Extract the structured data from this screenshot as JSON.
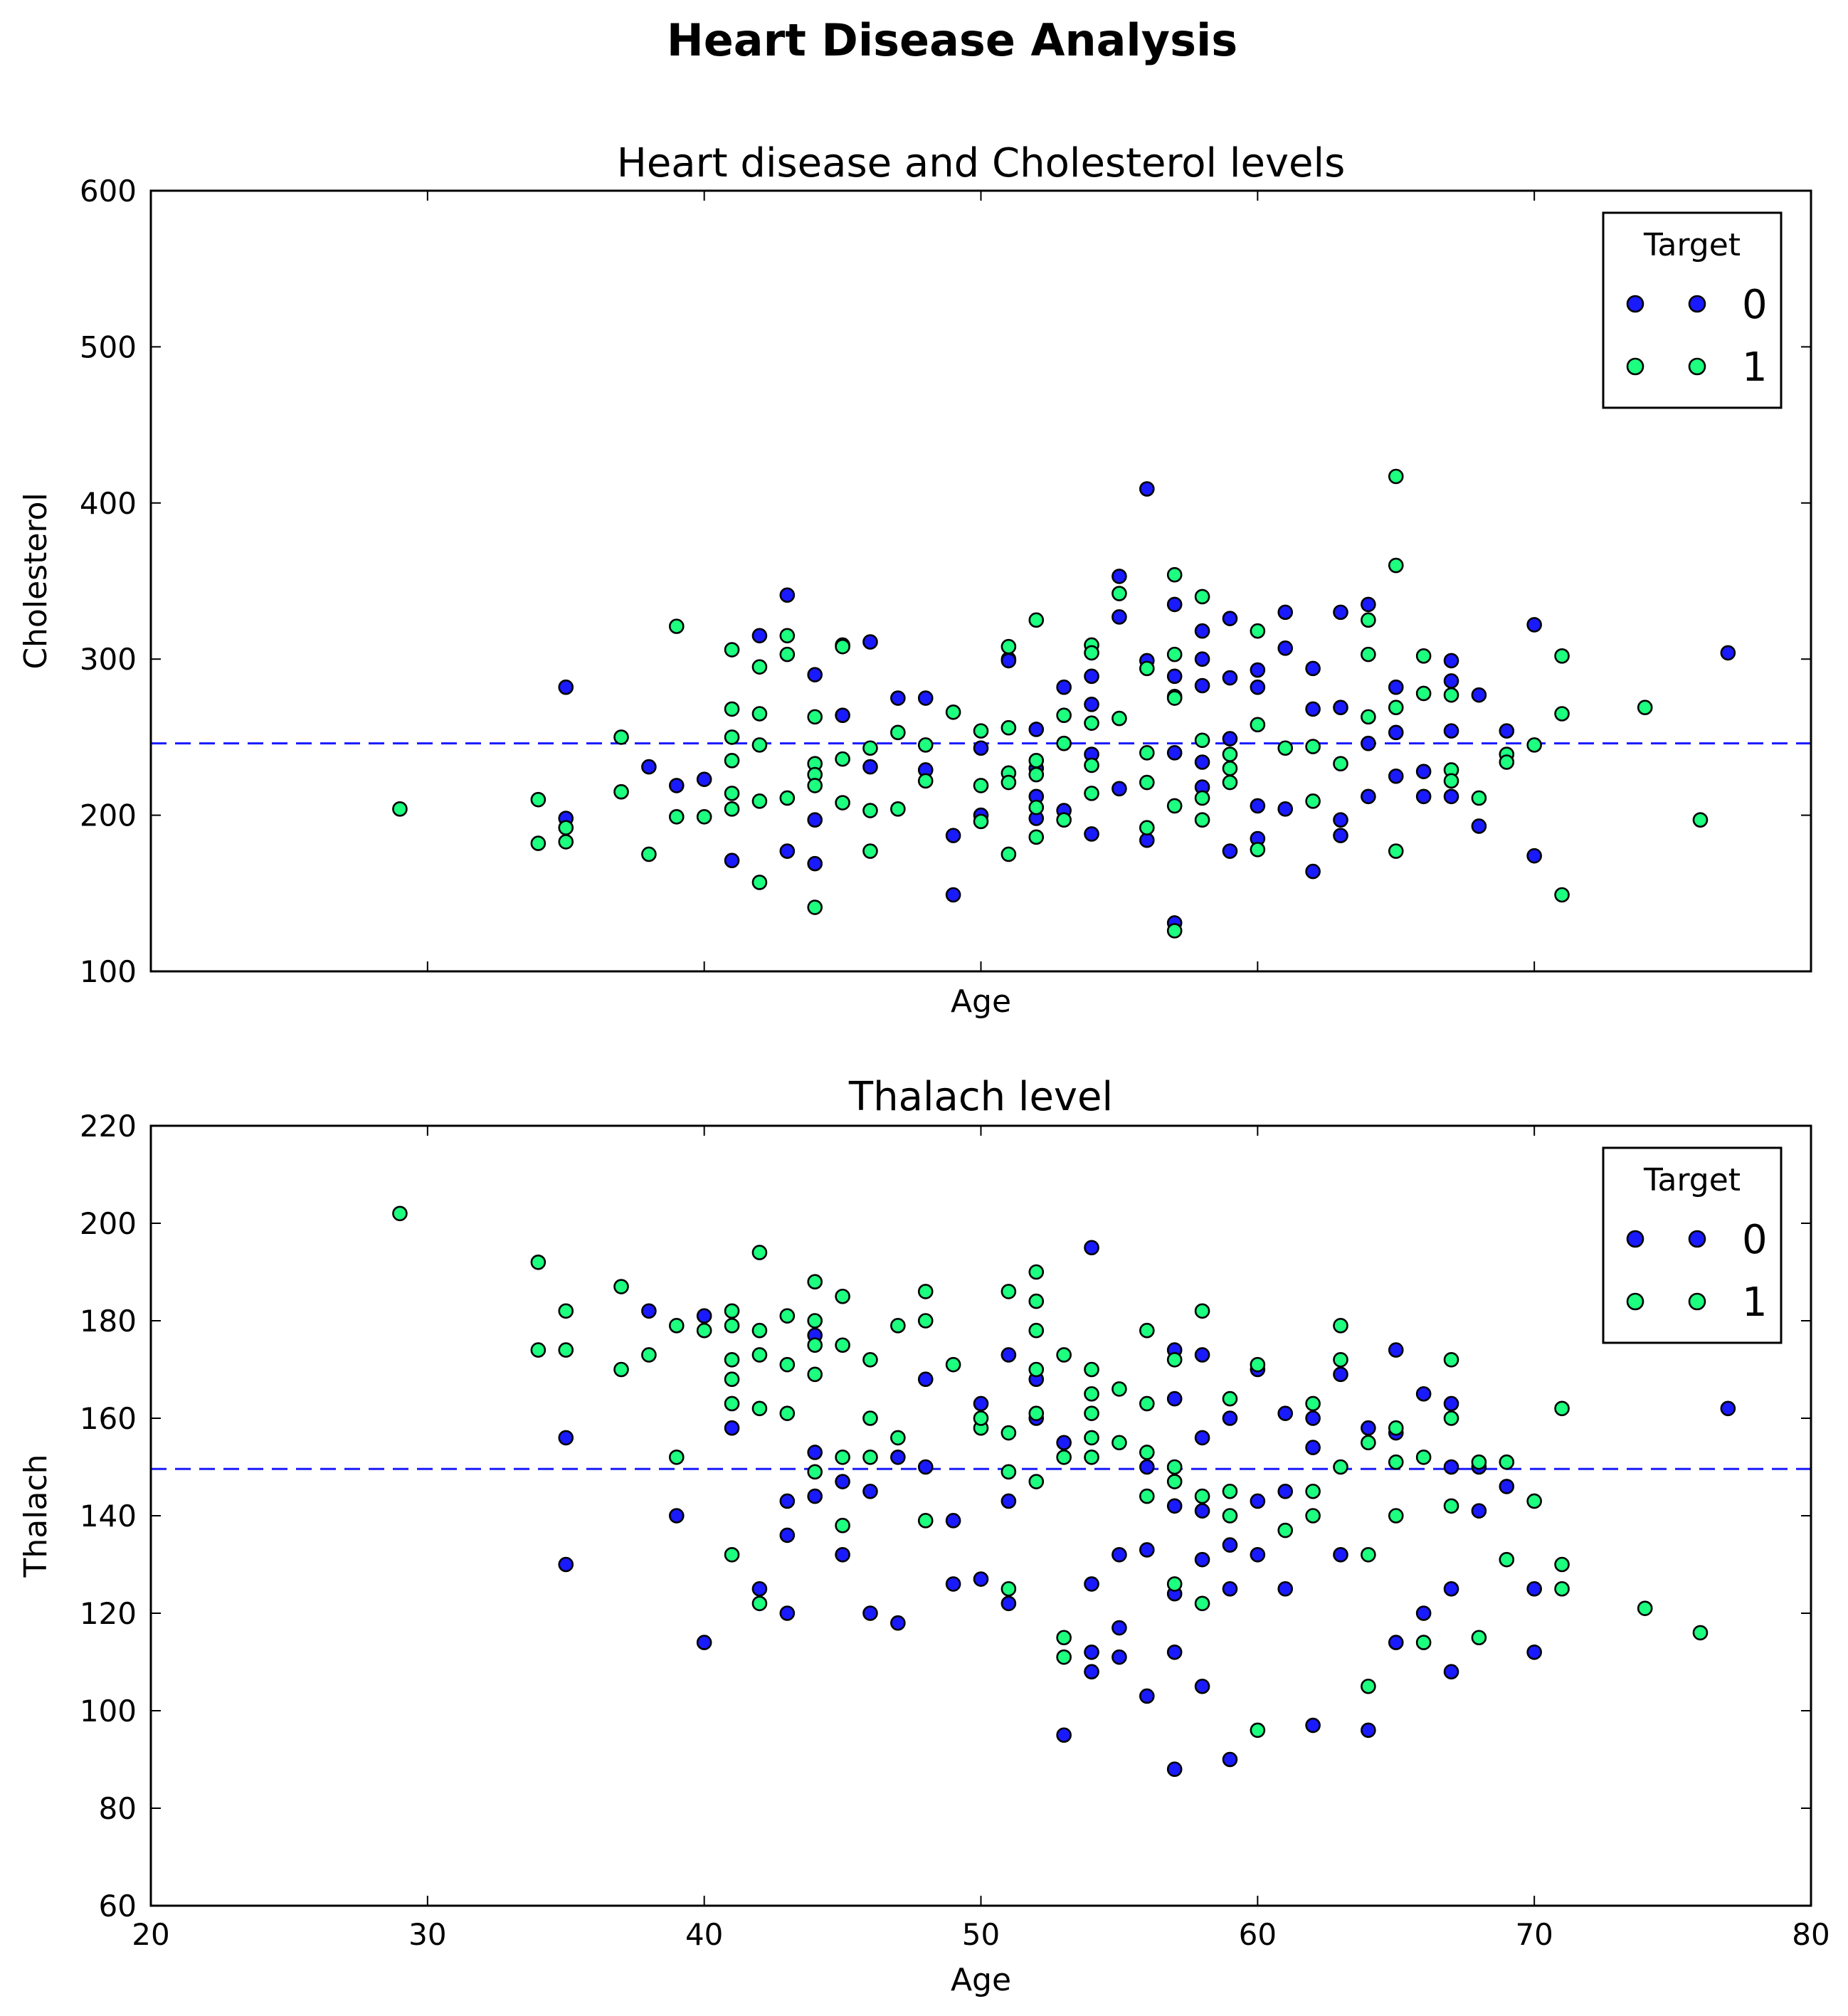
{
  "figure": {
    "title": "Heart Disease Analysis"
  },
  "colors": {
    "target_0": "#1a1aff",
    "target_1": "#1cff7f",
    "mean_line": "#1a1aff",
    "marker_edge": "#000000"
  },
  "chart_data": [
    {
      "type": "scatter",
      "title": "Heart disease and Cholesterol levels",
      "xlabel": "Age",
      "ylabel": "Cholesterol",
      "xlim": [
        20,
        80
      ],
      "ylim": [
        100,
        600
      ],
      "xticks": [
        30,
        40,
        50,
        60,
        70
      ],
      "yticks": [
        100,
        200,
        300,
        400,
        500,
        600
      ],
      "show_xticklabels": false,
      "grid": false,
      "legend": {
        "title": "Target",
        "placement": "top-right",
        "entries": [
          "0",
          "1"
        ]
      },
      "mean_line": 246,
      "series": [
        {
          "name": "0",
          "color_key": "target_0",
          "x": [
            35,
            35,
            38,
            39,
            40,
            41,
            42,
            43,
            43,
            44,
            44,
            44,
            45,
            45,
            46,
            46,
            47,
            48,
            48,
            49,
            49,
            50,
            50,
            51,
            51,
            52,
            52,
            52,
            52,
            53,
            53,
            54,
            54,
            54,
            54,
            55,
            55,
            55,
            56,
            56,
            56,
            57,
            57,
            57,
            57,
            57,
            58,
            58,
            58,
            58,
            58,
            59,
            59,
            59,
            59,
            60,
            60,
            60,
            60,
            61,
            61,
            61,
            62,
            62,
            62,
            63,
            63,
            63,
            63,
            64,
            64,
            64,
            65,
            65,
            65,
            66,
            66,
            67,
            67,
            67,
            67,
            68,
            68,
            69,
            70,
            70,
            77
          ],
          "y": [
            282,
            198,
            231,
            219,
            223,
            171,
            315,
            341,
            177,
            290,
            197,
            169,
            309,
            264,
            311,
            231,
            275,
            275,
            229,
            187,
            149,
            200,
            243,
            300,
            299,
            255,
            230,
            212,
            198,
            282,
            203,
            289,
            271,
            239,
            188,
            353,
            327,
            217,
            409,
            299,
            184,
            335,
            289,
            276,
            240,
            131,
            318,
            300,
            283,
            234,
            218,
            326,
            288,
            177,
            249,
            293,
            282,
            206,
            185,
            330,
            307,
            204,
            294,
            268,
            164,
            330,
            269,
            197,
            187,
            335,
            246,
            212,
            282,
            225,
            253,
            228,
            212,
            299,
            286,
            254,
            212,
            277,
            193,
            254,
            322,
            174,
            304
          ]
        },
        {
          "name": "1",
          "color_key": "target_1",
          "x": [
            29,
            34,
            34,
            35,
            35,
            37,
            37,
            38,
            39,
            39,
            40,
            41,
            41,
            41,
            41,
            41,
            41,
            42,
            42,
            42,
            42,
            42,
            43,
            43,
            43,
            44,
            44,
            44,
            44,
            44,
            45,
            45,
            45,
            46,
            46,
            46,
            47,
            47,
            48,
            48,
            49,
            50,
            50,
            50,
            51,
            51,
            51,
            51,
            51,
            52,
            52,
            52,
            52,
            52,
            53,
            53,
            53,
            54,
            54,
            54,
            54,
            54,
            55,
            55,
            56,
            56,
            56,
            56,
            57,
            57,
            57,
            57,
            57,
            58,
            58,
            58,
            58,
            59,
            59,
            59,
            60,
            60,
            60,
            61,
            62,
            62,
            63,
            64,
            64,
            64,
            65,
            65,
            65,
            65,
            66,
            66,
            67,
            67,
            67,
            68,
            69,
            69,
            70,
            71,
            71,
            71,
            74,
            76
          ],
          "y": [
            204,
            210,
            182,
            192,
            183,
            250,
            215,
            175,
            321,
            199,
            199,
            306,
            268,
            250,
            235,
            214,
            204,
            157,
            295,
            265,
            245,
            209,
            315,
            303,
            211,
            263,
            233,
            226,
            219,
            141,
            308,
            236,
            208,
            243,
            203,
            177,
            253,
            204,
            245,
            222,
            266,
            254,
            219,
            196,
            308,
            256,
            227,
            221,
            175,
            325,
            235,
            226,
            205,
            186,
            264,
            246,
            197,
            309,
            304,
            259,
            232,
            214,
            342,
            262,
            294,
            240,
            192,
            221,
            354,
            303,
            275,
            206,
            126,
            340,
            248,
            211,
            197,
            239,
            230,
            221,
            318,
            258,
            178,
            243,
            209,
            244,
            233,
            325,
            263,
            303,
            417,
            360,
            269,
            177,
            302,
            278,
            277,
            229,
            222,
            211,
            239,
            234,
            245,
            302,
            265,
            149,
            269,
            197
          ]
        }
      ]
    },
    {
      "type": "scatter",
      "title": "Thalach level",
      "xlabel": "Age",
      "ylabel": "Thalach",
      "xlim": [
        20,
        80
      ],
      "ylim": [
        60,
        220
      ],
      "xticks": [
        20,
        30,
        40,
        50,
        60,
        70,
        80
      ],
      "yticks": [
        60,
        80,
        100,
        120,
        140,
        160,
        180,
        200,
        220
      ],
      "show_xticklabels": true,
      "grid": false,
      "legend": {
        "title": "Target",
        "placement": "top-right",
        "entries": [
          "0",
          "1"
        ]
      },
      "mean_line": 149.6,
      "series": [
        {
          "name": "0",
          "color_key": "target_0",
          "x": [
            35,
            35,
            38,
            39,
            40,
            40,
            41,
            42,
            43,
            43,
            43,
            44,
            44,
            44,
            45,
            45,
            46,
            46,
            47,
            47,
            48,
            48,
            49,
            49,
            50,
            50,
            51,
            51,
            51,
            52,
            52,
            53,
            53,
            54,
            54,
            54,
            54,
            55,
            55,
            55,
            56,
            56,
            56,
            57,
            57,
            57,
            57,
            57,
            57,
            58,
            58,
            58,
            58,
            58,
            59,
            59,
            59,
            59,
            60,
            60,
            60,
            61,
            61,
            61,
            62,
            62,
            62,
            63,
            63,
            64,
            64,
            65,
            65,
            65,
            66,
            66,
            67,
            67,
            67,
            67,
            68,
            68,
            69,
            70,
            70,
            77
          ],
          "y": [
            156,
            130,
            182,
            140,
            181,
            114,
            158,
            125,
            143,
            136,
            120,
            177,
            153,
            144,
            147,
            132,
            145,
            120,
            152,
            118,
            168,
            150,
            139,
            126,
            163,
            127,
            173,
            143,
            122,
            168,
            160,
            155,
            95,
            195,
            126,
            112,
            108,
            132,
            117,
            111,
            150,
            133,
            103,
            174,
            164,
            142,
            124,
            112,
            88,
            173,
            156,
            141,
            131,
            105,
            134,
            125,
            90,
            160,
            170,
            143,
            132,
            161,
            145,
            125,
            160,
            154,
            97,
            169,
            132,
            158,
            96,
            174,
            157,
            114,
            165,
            120,
            163,
            150,
            125,
            108,
            150,
            141,
            146,
            125,
            112,
            162
          ]
        },
        {
          "name": "1",
          "color_key": "target_1",
          "x": [
            29,
            34,
            34,
            35,
            35,
            37,
            37,
            38,
            39,
            39,
            40,
            41,
            41,
            41,
            41,
            41,
            41,
            42,
            42,
            42,
            42,
            42,
            43,
            43,
            43,
            44,
            44,
            44,
            44,
            44,
            45,
            45,
            45,
            45,
            46,
            46,
            46,
            47,
            47,
            48,
            48,
            48,
            49,
            50,
            50,
            51,
            51,
            51,
            51,
            52,
            52,
            52,
            52,
            52,
            52,
            53,
            53,
            53,
            53,
            54,
            54,
            54,
            54,
            54,
            55,
            55,
            56,
            56,
            56,
            56,
            57,
            57,
            57,
            57,
            58,
            58,
            58,
            59,
            59,
            59,
            60,
            60,
            61,
            62,
            62,
            62,
            63,
            63,
            63,
            64,
            64,
            64,
            65,
            65,
            65,
            66,
            66,
            67,
            67,
            67,
            68,
            68,
            69,
            69,
            70,
            71,
            71,
            71,
            74,
            76
          ],
          "y": [
            202,
            192,
            174,
            182,
            174,
            187,
            170,
            173,
            179,
            152,
            178,
            182,
            179,
            172,
            168,
            163,
            132,
            194,
            178,
            173,
            162,
            122,
            181,
            171,
            161,
            188,
            180,
            175,
            169,
            149,
            185,
            175,
            152,
            138,
            172,
            160,
            152,
            179,
            156,
            186,
            180,
            139,
            171,
            158,
            160,
            186,
            157,
            149,
            125,
            190,
            184,
            178,
            170,
            147,
            161,
            173,
            152,
            115,
            111,
            170,
            165,
            161,
            156,
            152,
            155,
            166,
            178,
            163,
            153,
            144,
            150,
            147,
            126,
            172,
            144,
            122,
            182,
            164,
            145,
            140,
            171,
            96,
            137,
            163,
            145,
            140,
            179,
            172,
            150,
            155,
            132,
            105,
            158,
            151,
            140,
            152,
            114,
            172,
            160,
            142,
            151,
            115,
            151,
            131,
            143,
            162,
            130,
            125,
            121,
            116
          ]
        }
      ]
    }
  ]
}
